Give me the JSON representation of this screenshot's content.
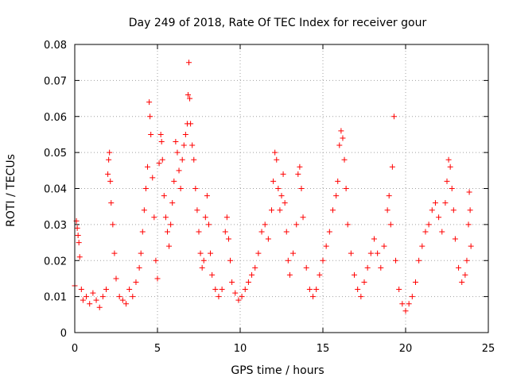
{
  "chart_data": {
    "type": "scatter",
    "title": "Day 249 of 2018, Rate Of TEC Index for receiver gour",
    "xlabel": "GPS time / hours",
    "ylabel": "ROTI / TECUs",
    "xlim": [
      0,
      25
    ],
    "ylim": [
      0,
      0.08
    ],
    "xticks": [
      0,
      5,
      10,
      15,
      20,
      25
    ],
    "xtick_labels": [
      "0",
      "5",
      "10",
      "15",
      "20",
      "25"
    ],
    "yticks": [
      0,
      0.01,
      0.02,
      0.03,
      0.04,
      0.05,
      0.06,
      0.07,
      0.08
    ],
    "ytick_labels": [
      "0",
      "0.01",
      "0.02",
      "0.03",
      "0.04",
      "0.05",
      "0.06",
      "0.07",
      "0.08"
    ],
    "grid": true,
    "marker": "+",
    "series": [
      {
        "name": "ROTI",
        "color": "#ff0000",
        "points": [
          [
            0.0,
            0.013
          ],
          [
            0.1,
            0.031
          ],
          [
            0.15,
            0.029
          ],
          [
            0.2,
            0.027
          ],
          [
            0.25,
            0.025
          ],
          [
            0.3,
            0.021
          ],
          [
            0.4,
            0.012
          ],
          [
            0.5,
            0.009
          ],
          [
            0.7,
            0.01
          ],
          [
            0.9,
            0.008
          ],
          [
            1.1,
            0.011
          ],
          [
            1.3,
            0.009
          ],
          [
            1.5,
            0.007
          ],
          [
            1.7,
            0.01
          ],
          [
            1.9,
            0.012
          ],
          [
            2.0,
            0.044
          ],
          [
            2.05,
            0.048
          ],
          [
            2.1,
            0.05
          ],
          [
            2.15,
            0.042
          ],
          [
            2.2,
            0.036
          ],
          [
            2.3,
            0.03
          ],
          [
            2.4,
            0.022
          ],
          [
            2.5,
            0.015
          ],
          [
            2.7,
            0.01
          ],
          [
            2.9,
            0.009
          ],
          [
            3.1,
            0.008
          ],
          [
            3.3,
            0.012
          ],
          [
            3.5,
            0.01
          ],
          [
            3.7,
            0.014
          ],
          [
            3.9,
            0.018
          ],
          [
            4.0,
            0.022
          ],
          [
            4.1,
            0.028
          ],
          [
            4.2,
            0.034
          ],
          [
            4.3,
            0.04
          ],
          [
            4.4,
            0.046
          ],
          [
            4.5,
            0.064
          ],
          [
            4.55,
            0.06
          ],
          [
            4.6,
            0.055
          ],
          [
            4.7,
            0.043
          ],
          [
            4.8,
            0.032
          ],
          [
            4.9,
            0.02
          ],
          [
            5.0,
            0.015
          ],
          [
            5.1,
            0.047
          ],
          [
            5.2,
            0.055
          ],
          [
            5.25,
            0.053
          ],
          [
            5.3,
            0.048
          ],
          [
            5.4,
            0.038
          ],
          [
            5.5,
            0.032
          ],
          [
            5.6,
            0.028
          ],
          [
            5.7,
            0.024
          ],
          [
            5.8,
            0.03
          ],
          [
            5.9,
            0.036
          ],
          [
            6.0,
            0.042
          ],
          [
            6.1,
            0.053
          ],
          [
            6.2,
            0.05
          ],
          [
            6.3,
            0.045
          ],
          [
            6.4,
            0.04
          ],
          [
            6.5,
            0.048
          ],
          [
            6.6,
            0.052
          ],
          [
            6.7,
            0.055
          ],
          [
            6.8,
            0.058
          ],
          [
            6.85,
            0.066
          ],
          [
            6.9,
            0.075
          ],
          [
            6.95,
            0.065
          ],
          [
            7.0,
            0.058
          ],
          [
            7.1,
            0.052
          ],
          [
            7.2,
            0.048
          ],
          [
            7.3,
            0.04
          ],
          [
            7.4,
            0.034
          ],
          [
            7.5,
            0.028
          ],
          [
            7.6,
            0.022
          ],
          [
            7.7,
            0.018
          ],
          [
            7.8,
            0.02
          ],
          [
            7.9,
            0.032
          ],
          [
            8.0,
            0.038
          ],
          [
            8.1,
            0.03
          ],
          [
            8.2,
            0.022
          ],
          [
            8.3,
            0.016
          ],
          [
            8.5,
            0.012
          ],
          [
            8.7,
            0.01
          ],
          [
            8.9,
            0.012
          ],
          [
            9.1,
            0.028
          ],
          [
            9.2,
            0.032
          ],
          [
            9.3,
            0.026
          ],
          [
            9.4,
            0.02
          ],
          [
            9.5,
            0.014
          ],
          [
            9.7,
            0.011
          ],
          [
            9.9,
            0.009
          ],
          [
            10.1,
            0.01
          ],
          [
            10.3,
            0.012
          ],
          [
            10.5,
            0.014
          ],
          [
            10.7,
            0.016
          ],
          [
            10.9,
            0.018
          ],
          [
            11.1,
            0.022
          ],
          [
            11.3,
            0.028
          ],
          [
            11.5,
            0.03
          ],
          [
            11.7,
            0.026
          ],
          [
            11.9,
            0.034
          ],
          [
            12.0,
            0.042
          ],
          [
            12.1,
            0.05
          ],
          [
            12.2,
            0.048
          ],
          [
            12.3,
            0.04
          ],
          [
            12.4,
            0.034
          ],
          [
            12.5,
            0.038
          ],
          [
            12.6,
            0.044
          ],
          [
            12.7,
            0.036
          ],
          [
            12.8,
            0.028
          ],
          [
            12.9,
            0.02
          ],
          [
            13.0,
            0.016
          ],
          [
            13.2,
            0.022
          ],
          [
            13.4,
            0.03
          ],
          [
            13.5,
            0.044
          ],
          [
            13.6,
            0.046
          ],
          [
            13.7,
            0.04
          ],
          [
            13.8,
            0.032
          ],
          [
            14.0,
            0.018
          ],
          [
            14.2,
            0.012
          ],
          [
            14.4,
            0.01
          ],
          [
            14.6,
            0.012
          ],
          [
            14.8,
            0.016
          ],
          [
            15.0,
            0.02
          ],
          [
            15.2,
            0.024
          ],
          [
            15.4,
            0.028
          ],
          [
            15.6,
            0.034
          ],
          [
            15.8,
            0.038
          ],
          [
            15.9,
            0.042
          ],
          [
            16.0,
            0.052
          ],
          [
            16.1,
            0.056
          ],
          [
            16.2,
            0.054
          ],
          [
            16.3,
            0.048
          ],
          [
            16.4,
            0.04
          ],
          [
            16.5,
            0.03
          ],
          [
            16.7,
            0.022
          ],
          [
            16.9,
            0.016
          ],
          [
            17.1,
            0.012
          ],
          [
            17.3,
            0.01
          ],
          [
            17.5,
            0.014
          ],
          [
            17.7,
            0.018
          ],
          [
            17.9,
            0.022
          ],
          [
            18.1,
            0.026
          ],
          [
            18.3,
            0.022
          ],
          [
            18.5,
            0.018
          ],
          [
            18.7,
            0.024
          ],
          [
            18.9,
            0.034
          ],
          [
            19.0,
            0.038
          ],
          [
            19.1,
            0.03
          ],
          [
            19.2,
            0.046
          ],
          [
            19.3,
            0.06
          ],
          [
            19.4,
            0.02
          ],
          [
            19.6,
            0.012
          ],
          [
            19.8,
            0.008
          ],
          [
            20.0,
            0.006
          ],
          [
            20.2,
            0.008
          ],
          [
            20.4,
            0.01
          ],
          [
            20.6,
            0.014
          ],
          [
            20.8,
            0.02
          ],
          [
            21.0,
            0.024
          ],
          [
            21.2,
            0.028
          ],
          [
            21.4,
            0.03
          ],
          [
            21.6,
            0.034
          ],
          [
            21.8,
            0.036
          ],
          [
            22.0,
            0.032
          ],
          [
            22.2,
            0.028
          ],
          [
            22.4,
            0.036
          ],
          [
            22.5,
            0.042
          ],
          [
            22.6,
            0.048
          ],
          [
            22.7,
            0.046
          ],
          [
            22.8,
            0.04
          ],
          [
            22.9,
            0.034
          ],
          [
            23.0,
            0.026
          ],
          [
            23.2,
            0.018
          ],
          [
            23.4,
            0.014
          ],
          [
            23.6,
            0.016
          ],
          [
            23.7,
            0.02
          ],
          [
            23.8,
            0.03
          ],
          [
            23.85,
            0.039
          ],
          [
            23.9,
            0.034
          ],
          [
            23.95,
            0.024
          ]
        ]
      }
    ]
  }
}
